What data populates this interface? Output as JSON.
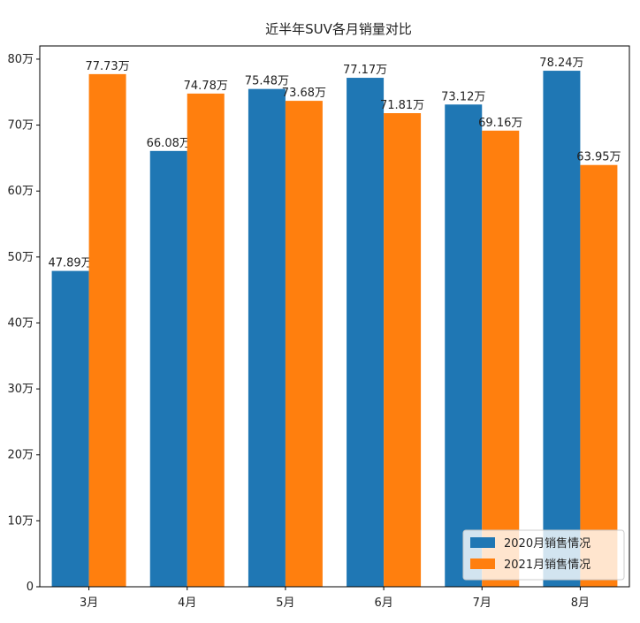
{
  "chart_data": {
    "type": "bar",
    "title": "近半年SUV各月销量对比",
    "categories": [
      "3月",
      "4月",
      "5月",
      "6月",
      "7月",
      "8月"
    ],
    "series": [
      {
        "name": "2020月销售情况",
        "color": "#1f77b4",
        "values": [
          47.89,
          66.08,
          75.48,
          77.17,
          73.12,
          78.24
        ],
        "labels": [
          "47.89万",
          "66.08万",
          "75.48万",
          "77.17万",
          "73.12万",
          "78.24万"
        ]
      },
      {
        "name": "2021月销售情况",
        "color": "#ff7f0e",
        "values": [
          77.73,
          74.78,
          73.68,
          71.81,
          69.16,
          63.95
        ],
        "labels": [
          "77.73万",
          "74.78万",
          "73.68万",
          "71.81万",
          "69.16万",
          "63.95万"
        ]
      }
    ],
    "ylim": [
      0,
      82
    ],
    "yticks": [
      0,
      10,
      20,
      30,
      40,
      50,
      60,
      70,
      80
    ],
    "ytick_labels": [
      "0",
      "10万",
      "20万",
      "30万",
      "40万",
      "50万",
      "60万",
      "70万",
      "80万"
    ],
    "xlabel": "",
    "ylabel": "",
    "grid": false,
    "legend_position": "bottom-right"
  }
}
